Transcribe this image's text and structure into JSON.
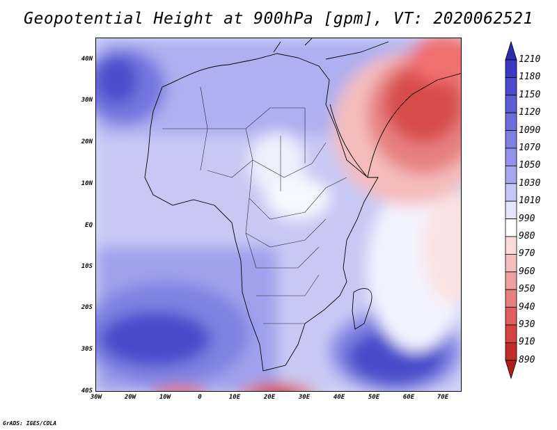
{
  "title": "Geopotential Height at 900hPa [gpm], VT: 2020062521",
  "lat_labels": [
    "40N",
    "30N",
    "20N",
    "10N",
    "EQ",
    "10S",
    "20S",
    "30S",
    "40S"
  ],
  "lon_labels": [
    "30W",
    "20W",
    "10W",
    "0",
    "10E",
    "20E",
    "30E",
    "40E",
    "50E",
    "60E",
    "70E"
  ],
  "colorbar": {
    "labels": [
      "1210",
      "1180",
      "1150",
      "1120",
      "1090",
      "1070",
      "1050",
      "1030",
      "1010",
      "990",
      "980",
      "970",
      "960",
      "950",
      "940",
      "930",
      "910",
      "890"
    ],
    "colors": [
      "#2d2ab4",
      "#3b39c4",
      "#4b4bcc",
      "#5c5dd4",
      "#6d6ddc",
      "#7e7fe2",
      "#9293e8",
      "#a6a7ee",
      "#c4c6f4",
      "#e4e5fa",
      "#ffffff",
      "#fbdcdc",
      "#f5bebe",
      "#ee9f9f",
      "#e87f7f",
      "#e05e5e",
      "#d64343",
      "#c52b2b",
      "#b01d1d"
    ]
  },
  "credit": "GrADS: IGES/COLA",
  "map": {
    "lon_range": [
      -30,
      75
    ],
    "lat_range": [
      -40,
      45
    ]
  }
}
